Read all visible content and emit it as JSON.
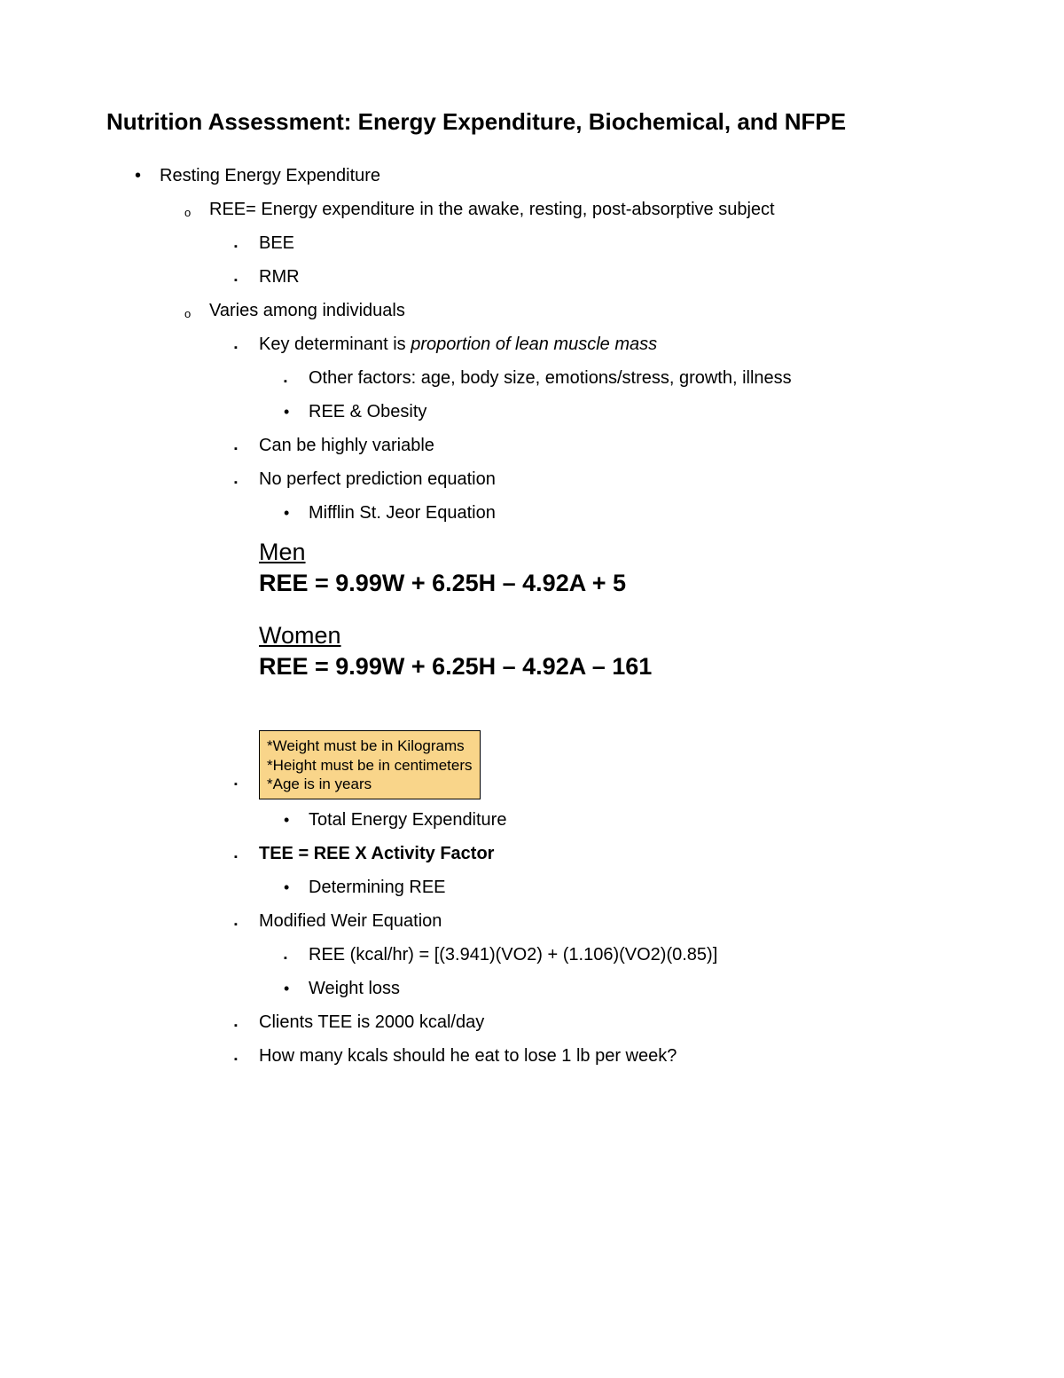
{
  "title": "Nutrition Assessment: Energy Expenditure, Biochemical, and NFPE",
  "list": {
    "item1": "Resting Energy Expenditure",
    "item1_1": "REE= Energy expenditure in the awake, resting, post-absorptive subject",
    "item1_1_1": "BEE",
    "item1_1_2": "RMR",
    "item1_2": "Varies among individuals",
    "item1_2_1_prefix": "Key determinant is ",
    "item1_2_1_italic": "proportion of lean muscle mass",
    "item1_2_1_1": "Other factors: age, body size, emotions/stress, growth, illness",
    "item1_2_1_2": "REE & Obesity",
    "item1_2_2": "Can be highly variable",
    "item1_2_3": "No perfect prediction equation",
    "item1_2_3_1": "Mifflin St. Jeor Equation"
  },
  "equations": {
    "men_label": "Men",
    "men_formula": "REE = 9.99W + 6.25H – 4.92A + 5",
    "women_label": "Women",
    "women_formula": "REE = 9.99W + 6.25H – 4.92A – 161"
  },
  "notebox": {
    "line1": "*Weight must be in Kilograms",
    "line2": "*Height must be in centimeters",
    "line3": "*Age is in years",
    "bg_color": "#f9d58a",
    "border_color": "#000000"
  },
  "list2": {
    "tee_label": "Total Energy Expenditure",
    "tee_formula": "TEE = REE X Activity Factor",
    "det_ree": "Determining REE",
    "mod_weir": "Modified Weir Equation",
    "mod_weir_eq": "REE (kcal/hr) = [(3.941)(VO2) + (1.106)(VO2)(0.85)]",
    "weight_loss": "Weight loss",
    "client_tee": "Clients TEE is 2000 kcal/day",
    "question": "How many kcals should he eat to lose 1 lb per week?"
  },
  "style": {
    "text_color": "#000000",
    "bg_color": "#ffffff",
    "title_fontsize": 26,
    "body_fontsize": 20,
    "eq_fontsize": 27,
    "note_fontsize": 17
  }
}
